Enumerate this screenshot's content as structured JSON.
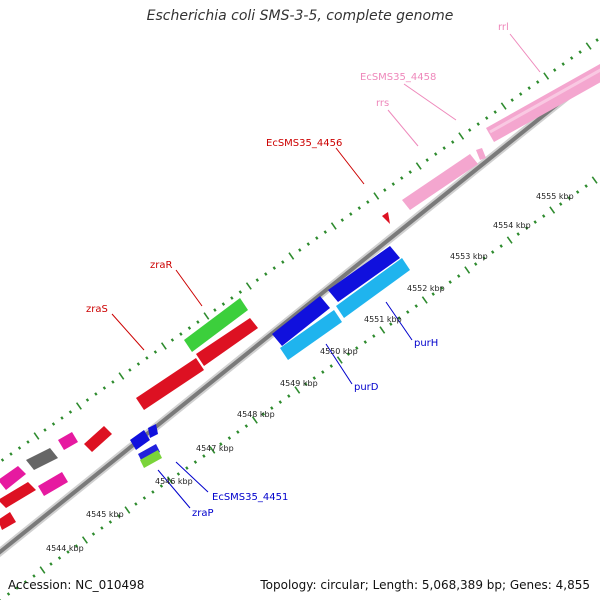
{
  "title": "Escherichia coli SMS-3-5, complete genome",
  "footer": {
    "accession": "Accession: NC_010498",
    "summary": "Topology: circular; Length: 5,068,389 bp; Genes: 4,855"
  },
  "colors": {
    "backbone": "#888888",
    "tick": "#2e8b2e",
    "label_red": "#cc0000",
    "label_pink": "#ee88bb",
    "label_blue": "#0000cc",
    "kbp_text": "#222222"
  },
  "kbp_ticks": [
    {
      "label": "4544 kbp"
    },
    {
      "label": "4545 kbp"
    },
    {
      "label": "4546 kbp"
    },
    {
      "label": "4547 kbp"
    },
    {
      "label": "4548 kbp"
    },
    {
      "label": "4549 kbp"
    },
    {
      "label": "4550 kbp"
    },
    {
      "label": "4551 kbp"
    },
    {
      "label": "4552 kbp"
    },
    {
      "label": "4553 kbp"
    },
    {
      "label": "4554 kbp"
    },
    {
      "label": "4555 kbp"
    }
  ],
  "feature_labels": [
    {
      "text": "rrl",
      "color": "pink"
    },
    {
      "text": "EcSMS35_4458",
      "color": "pink"
    },
    {
      "text": "rrs",
      "color": "pink"
    },
    {
      "text": "EcSMS35_4456",
      "color": "red"
    },
    {
      "text": "zraR",
      "color": "red"
    },
    {
      "text": "zraS",
      "color": "red"
    },
    {
      "text": "purH",
      "color": "blue"
    },
    {
      "text": "purD",
      "color": "blue"
    },
    {
      "text": "EcSMS35_4451",
      "color": "blue"
    },
    {
      "text": "zraP",
      "color": "blue"
    }
  ]
}
